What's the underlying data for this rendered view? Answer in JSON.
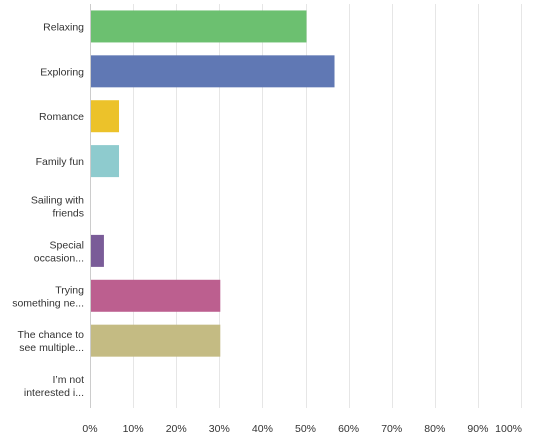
{
  "chart_data": {
    "type": "bar",
    "orientation": "horizontal",
    "title": "",
    "xlabel": "",
    "ylabel": "",
    "categories": [
      [
        "Relaxing"
      ],
      [
        "Exploring"
      ],
      [
        "Romance"
      ],
      [
        "Family fun"
      ],
      [
        "Sailing with",
        "friends"
      ],
      [
        "Special",
        "occasion..."
      ],
      [
        "Trying",
        "something ne..."
      ],
      [
        "The chance to",
        "see multiple..."
      ],
      [
        "I’m not",
        "interested i..."
      ]
    ],
    "values": [
      50,
      56.5,
      6.5,
      6.5,
      0,
      3,
      30,
      30,
      0
    ],
    "colors": [
      "#6cc070",
      "#6078b4",
      "#ecc22a",
      "#8ecbce",
      "#999999",
      "#7a5c98",
      "#bc5f8f",
      "#c4bb83",
      "#999999"
    ],
    "xlim": [
      0,
      100
    ],
    "ticks": [
      "0%",
      "10%",
      "20%",
      "30%",
      "40%",
      "50%",
      "60%",
      "70%",
      "80%",
      "90%",
      "100%"
    ],
    "tick_values": [
      0,
      10,
      20,
      30,
      40,
      50,
      60,
      70,
      80,
      90,
      100
    ],
    "grid": true,
    "grid_color": "#e6e6e6"
  }
}
